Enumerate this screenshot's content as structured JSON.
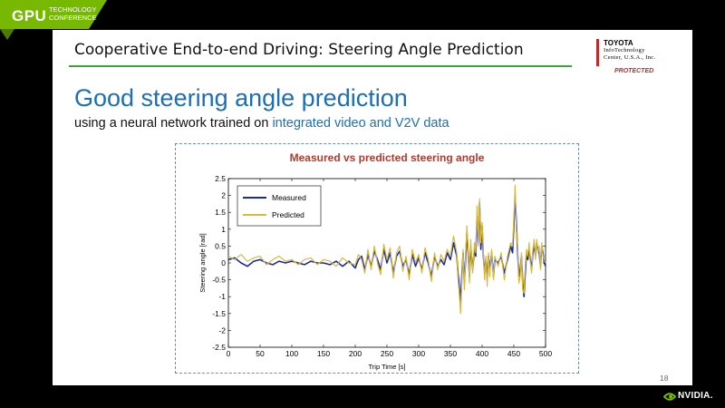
{
  "conference": {
    "name": "GPU",
    "line1": "TECHNOLOGY",
    "line2": "CONFERENCE",
    "brand_color": "#76b900"
  },
  "slide": {
    "title": "Cooperative End-to-end Driving: Steering Angle Prediction",
    "heading": "Good steering angle prediction",
    "subtitle_prefix": "using a neural network trained on ",
    "subtitle_highlight": "integrated video and V2V data",
    "page_number": "18"
  },
  "logo": {
    "name": "TOYOTA",
    "line1": "InfoTechnology",
    "line2": "Center, U.S.A., Inc.",
    "protected": "PROTECTED"
  },
  "footer": {
    "brand": "NVIDIA."
  },
  "chart_data": {
    "type": "line",
    "title": "Measured vs predicted steering angle",
    "xlabel": "Trip Time [s]",
    "ylabel": "Steering angle [rad]",
    "xlim": [
      0,
      500
    ],
    "ylim": [
      -2.5,
      2.5
    ],
    "xticks": [
      0,
      50,
      100,
      150,
      200,
      250,
      300,
      350,
      400,
      450,
      500
    ],
    "yticks": [
      2.5,
      2,
      1.5,
      1,
      0.5,
      0,
      -0.5,
      -1,
      -1.5,
      -2,
      -2.5
    ],
    "xtick_labels": [
      "0",
      "50",
      "100",
      "150",
      "200",
      "250",
      "300",
      "350",
      "400",
      "450",
      "500"
    ],
    "ytick_labels": [
      "2.5",
      "2",
      "1.5",
      "1",
      "0.5",
      "0",
      "-0.5",
      "-1",
      "-1.5",
      "-2",
      "-2.5"
    ],
    "legend": "top-left",
    "grid": false,
    "series": [
      {
        "name": "Measured",
        "color": "#1a2aa8",
        "x": [
          0,
          10,
          20,
          30,
          40,
          50,
          60,
          70,
          80,
          90,
          100,
          110,
          120,
          130,
          140,
          150,
          160,
          170,
          180,
          190,
          200,
          205,
          210,
          215,
          220,
          225,
          230,
          235,
          240,
          245,
          250,
          255,
          260,
          265,
          270,
          275,
          280,
          285,
          290,
          295,
          300,
          305,
          310,
          315,
          320,
          325,
          330,
          335,
          340,
          345,
          350,
          355,
          360,
          362,
          364,
          366,
          368,
          370,
          372,
          374,
          376,
          378,
          380,
          382,
          385,
          388,
          390,
          392,
          394,
          396,
          398,
          400,
          402,
          404,
          406,
          408,
          410,
          412,
          415,
          418,
          420,
          425,
          430,
          435,
          440,
          445,
          448,
          450,
          452,
          454,
          456,
          458,
          460,
          462,
          464,
          466,
          468,
          470,
          472,
          474,
          476,
          478,
          480,
          482,
          484,
          486,
          488,
          490,
          492,
          494,
          496,
          498,
          500
        ],
        "y": [
          0.1,
          0.15,
          0.0,
          -0.1,
          0.05,
          0.1,
          0.0,
          -0.05,
          0.05,
          0.0,
          0.05,
          0.0,
          -0.05,
          0.05,
          0.0,
          0.0,
          -0.05,
          0.05,
          -0.1,
          0.05,
          -0.15,
          0.1,
          0.2,
          -0.2,
          0.25,
          -0.1,
          0.35,
          0.1,
          -0.2,
          0.4,
          0.0,
          0.3,
          -0.3,
          0.2,
          0.35,
          -0.1,
          0.1,
          -0.35,
          0.25,
          -0.1,
          0.15,
          -0.2,
          0.3,
          0.0,
          -0.4,
          0.2,
          -0.1,
          0.1,
          -0.05,
          0.3,
          0.1,
          0.6,
          0.2,
          -0.3,
          -0.7,
          -1.2,
          -0.4,
          0.3,
          -0.6,
          0.1,
          0.9,
          0.3,
          -0.4,
          0.5,
          -0.2,
          0.4,
          0.2,
          1.4,
          0.6,
          1.8,
          0.4,
          1.1,
          0.2,
          -0.3,
          0.1,
          -0.5,
          0.2,
          -0.2,
          0.3,
          -0.4,
          0.1,
          0.0,
          0.2,
          -0.3,
          0.1,
          0.5,
          0.3,
          1.1,
          2.0,
          1.2,
          0.3,
          -0.4,
          -0.2,
          0.2,
          -0.6,
          -1.0,
          -0.3,
          0.3,
          0.1,
          0.4,
          0.1,
          -0.2,
          0.3,
          0.5,
          0.2,
          0.6,
          0.4,
          0.3,
          -0.1,
          0.5,
          0.3,
          0.0,
          -0.1
        ]
      },
      {
        "name": "Predicted",
        "color": "#d8b93a",
        "x": [
          0,
          10,
          20,
          30,
          40,
          50,
          60,
          70,
          80,
          90,
          100,
          110,
          120,
          130,
          140,
          150,
          160,
          170,
          180,
          190,
          200,
          205,
          210,
          215,
          220,
          225,
          230,
          235,
          240,
          245,
          250,
          255,
          260,
          265,
          270,
          275,
          280,
          285,
          290,
          295,
          300,
          305,
          310,
          315,
          320,
          325,
          330,
          335,
          340,
          345,
          350,
          355,
          360,
          362,
          364,
          366,
          368,
          370,
          372,
          374,
          376,
          378,
          380,
          382,
          385,
          388,
          390,
          392,
          394,
          396,
          398,
          400,
          402,
          404,
          406,
          408,
          410,
          412,
          415,
          418,
          420,
          425,
          430,
          435,
          440,
          445,
          448,
          450,
          452,
          454,
          456,
          458,
          460,
          462,
          464,
          466,
          468,
          470,
          472,
          474,
          476,
          478,
          480,
          482,
          484,
          486,
          488,
          490,
          492,
          494,
          496,
          498,
          500
        ],
        "y": [
          0.2,
          0.1,
          0.25,
          0.05,
          0.15,
          0.2,
          -0.05,
          0.1,
          0.2,
          0.05,
          0.1,
          -0.05,
          0.1,
          0.15,
          -0.05,
          0.1,
          0.05,
          -0.1,
          0.15,
          0.0,
          -0.05,
          0.25,
          0.1,
          -0.3,
          0.4,
          -0.2,
          0.5,
          0.0,
          -0.35,
          0.55,
          0.1,
          0.45,
          -0.45,
          0.3,
          0.5,
          -0.25,
          0.2,
          -0.5,
          0.4,
          0.0,
          0.25,
          -0.3,
          0.45,
          0.1,
          -0.55,
          0.3,
          -0.2,
          0.25,
          0.05,
          0.4,
          0.2,
          0.8,
          0.3,
          -0.5,
          -0.9,
          -1.5,
          -0.6,
          0.4,
          -0.8,
          0.2,
          1.1,
          0.4,
          -0.6,
          0.7,
          -0.3,
          0.6,
          0.3,
          1.7,
          0.5,
          1.9,
          0.6,
          1.2,
          0.3,
          -0.5,
          0.2,
          -0.7,
          0.3,
          -0.4,
          0.4,
          -0.5,
          0.2,
          -0.1,
          0.3,
          -0.5,
          0.2,
          0.6,
          0.5,
          1.3,
          2.3,
          1.0,
          0.5,
          -0.6,
          -0.4,
          0.3,
          -0.8,
          -0.9,
          -0.1,
          0.4,
          0.2,
          0.6,
          0.0,
          -0.3,
          0.4,
          0.7,
          0.1,
          0.7,
          0.3,
          0.5,
          -0.2,
          0.6,
          0.2,
          0.1,
          0.0
        ]
      }
    ]
  }
}
